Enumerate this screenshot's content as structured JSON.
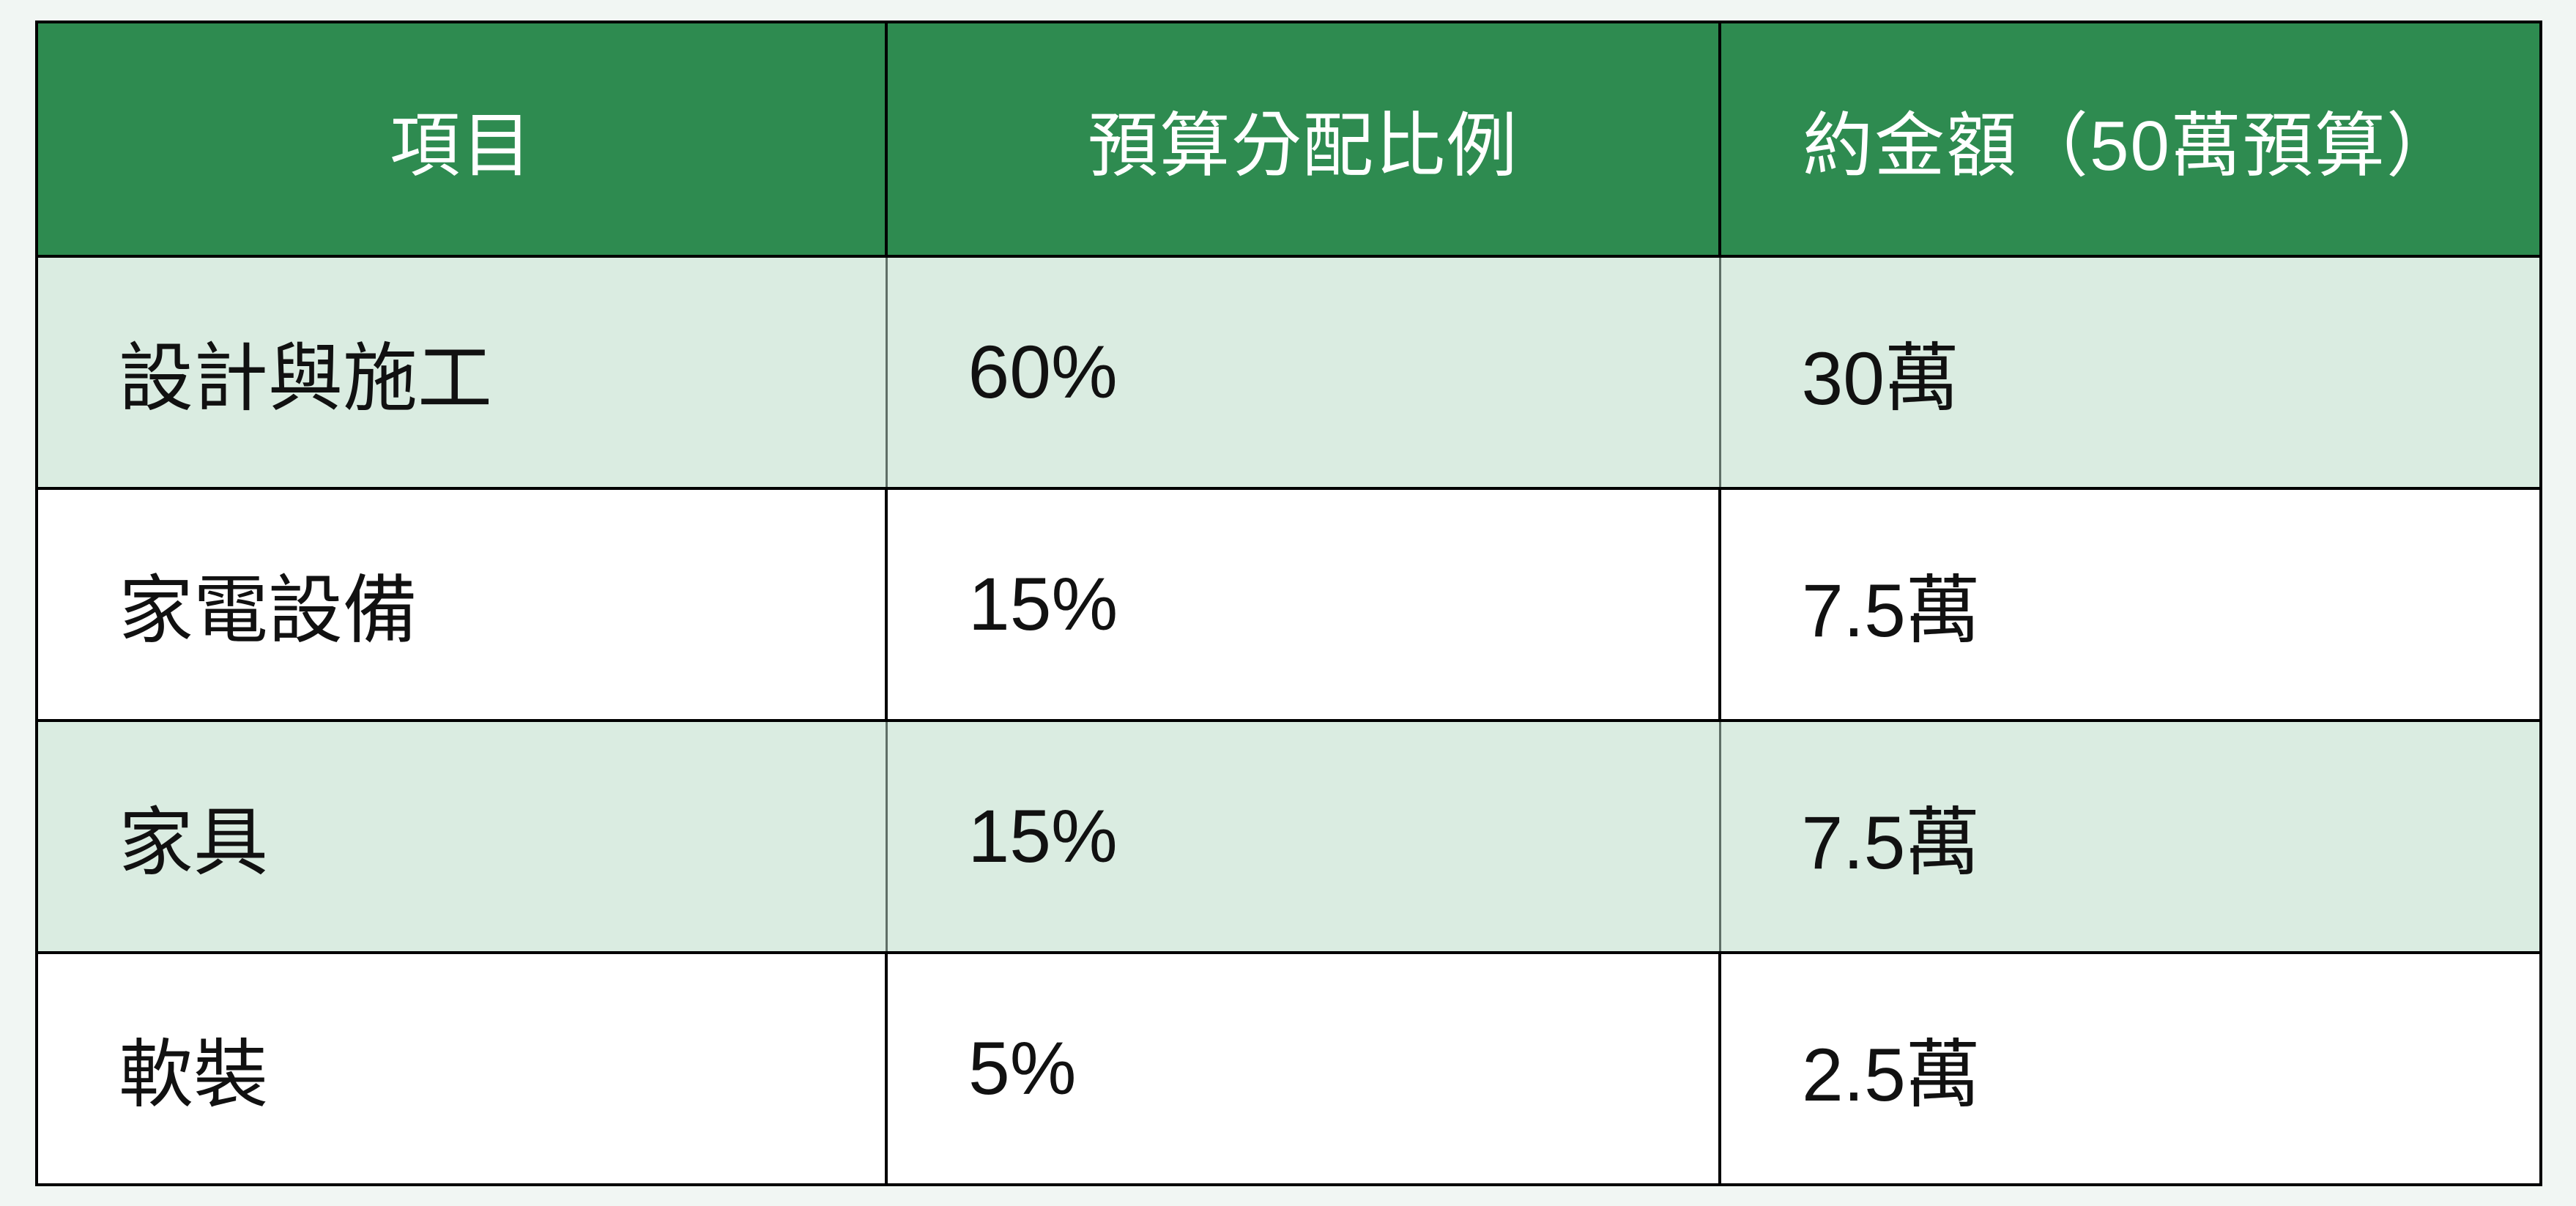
{
  "colors": {
    "page_background": "#F1F6F3",
    "header_background": "#2E8B50",
    "header_text": "#FFFFFF",
    "alt_row_background": "#DAECE1",
    "white_row_background": "#FFFFFF",
    "body_text": "#111111",
    "frame_border": "#000000",
    "green_row_divider": "#5E6E66"
  },
  "table": {
    "columns": [
      {
        "label": "項目"
      },
      {
        "label": "預算分配比例"
      },
      {
        "label": "約金額（50萬預算）"
      }
    ],
    "rows": [
      {
        "item": "設計與施工",
        "ratio": "60%",
        "amount": "30萬"
      },
      {
        "item": "家電設備",
        "ratio": "15%",
        "amount": "7.5萬"
      },
      {
        "item": "家具",
        "ratio": "15%",
        "amount": "7.5萬"
      },
      {
        "item": "軟裝",
        "ratio": "5%",
        "amount": "2.5萬"
      }
    ]
  }
}
